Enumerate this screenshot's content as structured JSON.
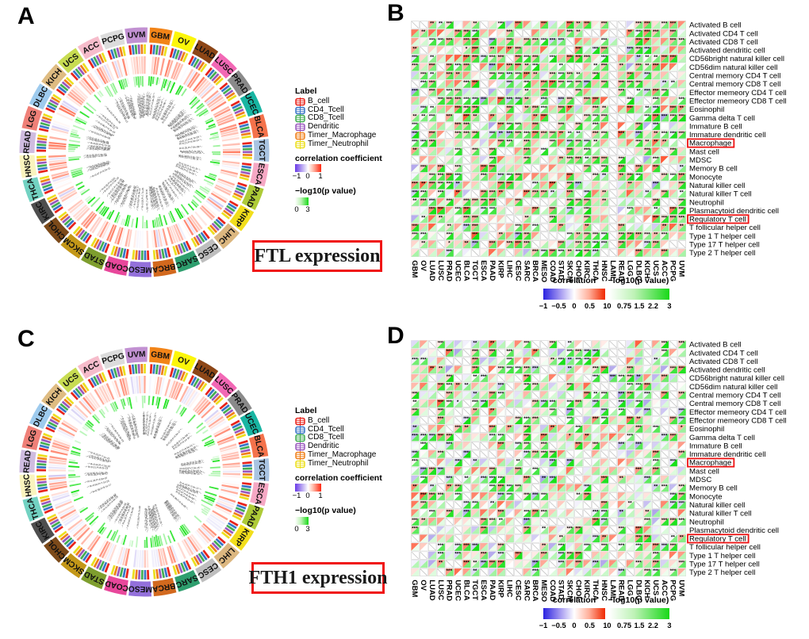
{
  "figure": {
    "panel_a_letter": "A",
    "panel_b_letter": "B",
    "panel_c_letter": "C",
    "panel_d_letter": "D",
    "panel_a_title": "FTL expression",
    "panel_c_title": "FTH1 expression"
  },
  "circos_legend": {
    "label_title": "Label",
    "items": [
      {
        "label": "B_cell",
        "color": "#e8231c"
      },
      {
        "label": "CD4_Tcell",
        "color": "#3a76c8"
      },
      {
        "label": "CD8_Tcell",
        "color": "#44ae54"
      },
      {
        "label": "Dendritic",
        "color": "#9a58be"
      },
      {
        "label": "Timer_Macrophage",
        "color": "#f0801a"
      },
      {
        "label": "Timer_Neutrophil",
        "color": "#ecdf1e"
      }
    ],
    "corr_title": "correlation coefficient",
    "corr_ticks": [
      "−1",
      "0",
      "1"
    ],
    "p_title": "−log10(p value)",
    "p_ticks": [
      "0",
      "3"
    ]
  },
  "circos": {
    "stat_label_format": "R={r},P={p}",
    "cancers": [
      {
        "name": "GBM",
        "color": "#f28418"
      },
      {
        "name": "OV",
        "color": "#fcf60a"
      },
      {
        "name": "LUAD",
        "color": "#8c4617"
      },
      {
        "name": "LUSC",
        "color": "#f268b5"
      },
      {
        "name": "PRAD",
        "color": "#8a8a8a"
      },
      {
        "name": "UCEC",
        "color": "#18b5a2"
      },
      {
        "name": "BLCA",
        "color": "#f4724b"
      },
      {
        "name": "TGCT",
        "color": "#a9c4e2"
      },
      {
        "name": "ESCA",
        "color": "#f6a8c4"
      },
      {
        "name": "PAAD",
        "color": "#aecb38"
      },
      {
        "name": "KIRP",
        "color": "#f2de1c"
      },
      {
        "name": "LIHC",
        "color": "#dcb780"
      },
      {
        "name": "CESC",
        "color": "#bebebe"
      },
      {
        "name": "SARC",
        "color": "#2e9e6e"
      },
      {
        "name": "BRCA",
        "color": "#d2691e"
      },
      {
        "name": "MESO",
        "color": "#9370db"
      },
      {
        "name": "COAD",
        "color": "#e8479b"
      },
      {
        "name": "STAD",
        "color": "#7e9e2e"
      },
      {
        "name": "SKCM",
        "color": "#c39718"
      },
      {
        "name": "CHOL",
        "color": "#7c4a1a"
      },
      {
        "name": "KIRC",
        "color": "#4e4e4e"
      },
      {
        "name": "THCA",
        "color": "#72d2c2"
      },
      {
        "name": "HNSC",
        "color": "#faf4be"
      },
      {
        "name": "READ",
        "color": "#cfbce0"
      },
      {
        "name": "LGG",
        "color": "#ef8078"
      },
      {
        "name": "DLBC",
        "color": "#9ecbee"
      },
      {
        "name": "KICH",
        "color": "#dfbc82"
      },
      {
        "name": "UCS",
        "color": "#c8dc52"
      },
      {
        "name": "ACC",
        "color": "#f6bccb"
      },
      {
        "name": "PCPG",
        "color": "#dcdcdc"
      },
      {
        "name": "UVM",
        "color": "#c291d2"
      }
    ]
  },
  "heatmap": {
    "columns": [
      "GBM",
      "OV",
      "LUAD",
      "LUSC",
      "PRAD",
      "UCEC",
      "BLCA",
      "TGCT",
      "ESCA",
      "PAAD",
      "KIRP",
      "LIHC",
      "CESC",
      "SARC",
      "BRCA",
      "MESO",
      "COAD",
      "STAD",
      "SKCM",
      "CHOL",
      "KIRC",
      "THCA",
      "HNSC",
      "LAML",
      "READ",
      "LGG",
      "DLBC",
      "KICH",
      "UCS",
      "ACC",
      "PCPG",
      "UVM"
    ],
    "rows": [
      "Activated B cell",
      "Activated CD4 T cell",
      "Activated CD8 T cell",
      "Activated dendritic cell",
      "CD56bright natural killer cell",
      "CD56dim natural killer cell",
      "Central memory CD4 T cell",
      "Central memory CD8 T cell",
      "Effector memeory CD4 T cell",
      "Effector memeory CD8 T cell",
      "Eosinophil",
      "Gamma delta T cell",
      "Immature  B cell",
      "Immature dendritic cell",
      "Macrophage",
      "Mast cell",
      "MDSC",
      "Memory B cell",
      "Monocyte",
      "Natural killer cell",
      "Natural killer T cell",
      "Neutrophil",
      "Plasmacytoid dendritic cell",
      "Regulatory T cell",
      "T follicular helper cell",
      "Type 1 T helper cell",
      "Type 17 T helper cell",
      "Type 2 T helper cell"
    ],
    "boxed_rows": [
      "Macrophage",
      "Regulatory T cell"
    ],
    "legend": {
      "corr_title": "correlation",
      "corr_ticks": [
        "−1",
        "−0.5",
        "0",
        "0.5",
        "1"
      ],
      "p_title": "−log10(p value)",
      "p_ticks": [
        "0",
        "0.75",
        "1.5",
        "2.2",
        "3"
      ]
    }
  },
  "chart_data": [
    {
      "panel": "A",
      "type": "heatmap",
      "subtype": "circular-circos",
      "title": "FTL expression",
      "categories": [
        "GBM",
        "OV",
        "LUAD",
        "LUSC",
        "PRAD",
        "UCEC",
        "BLCA",
        "TGCT",
        "ESCA",
        "PAAD",
        "KIRP",
        "LIHC",
        "CESC",
        "SARC",
        "BRCA",
        "MESO",
        "COAD",
        "STAD",
        "SKCM",
        "CHOL",
        "KIRC",
        "THCA",
        "HNSC",
        "READ",
        "LGG",
        "DLBC",
        "KICH",
        "UCS",
        "ACC",
        "PCPG",
        "UVM"
      ],
      "series": [
        "B_cell",
        "CD4_Tcell",
        "CD8_Tcell",
        "Dendritic",
        "Timer_Macrophage",
        "Timer_Neutrophil"
      ],
      "rings": [
        "cancer-type label",
        "immune-cell color ticks",
        "correlation coefficient bars",
        "−log10(p value) bars",
        "R/P statistic labels"
      ],
      "corr_range": [
        -1,
        1
      ],
      "p_range": [
        0,
        3
      ],
      "values_estimated": true
    },
    {
      "panel": "B",
      "type": "heatmap",
      "subtype": "split-triangle",
      "title": "",
      "x": [
        "GBM",
        "OV",
        "LUAD",
        "LUSC",
        "PRAD",
        "UCEC",
        "BLCA",
        "TGCT",
        "ESCA",
        "PAAD",
        "KIRP",
        "LIHC",
        "CESC",
        "SARC",
        "BRCA",
        "MESO",
        "COAD",
        "STAD",
        "SKCM",
        "CHOL",
        "KIRC",
        "THCA",
        "HNSC",
        "LAML",
        "READ",
        "LGG",
        "DLBC",
        "KICH",
        "UCS",
        "ACC",
        "PCPG",
        "UVM"
      ],
      "y": [
        "Activated B cell",
        "Activated CD4 T cell",
        "Activated CD8 T cell",
        "Activated dendritic cell",
        "CD56bright natural killer cell",
        "CD56dim natural killer cell",
        "Central memory CD4 T cell",
        "Central memory CD8 T cell",
        "Effector memeory CD4 T cell",
        "Effector memeory CD8 T cell",
        "Eosinophil",
        "Gamma delta T cell",
        "Immature  B cell",
        "Immature dendritic cell",
        "Macrophage",
        "Mast cell",
        "MDSC",
        "Memory B cell",
        "Monocyte",
        "Natural killer cell",
        "Natural killer T cell",
        "Neutrophil",
        "Plasmacytoid dendritic cell",
        "Regulatory T cell",
        "T follicular helper cell",
        "Type 1 T helper cell",
        "Type 17 T helper cell",
        "Type 2 T helper cell"
      ],
      "cell_encoding": {
        "upper_left_triangle": "correlation −1..1 (blue-white-red)",
        "lower_right_triangle": "−log10(p value) 0..3 (white-green)",
        "empty_cell": "gray diagonal slash",
        "stars": "significance asterisks"
      },
      "highlighted_rows": [
        "Macrophage",
        "Regulatory T cell"
      ],
      "values_estimated": true
    },
    {
      "panel": "C",
      "type": "heatmap",
      "subtype": "circular-circos",
      "title": "FTH1 expression",
      "categories": [
        "GBM",
        "OV",
        "LUAD",
        "LUSC",
        "PRAD",
        "UCEC",
        "BLCA",
        "TGCT",
        "ESCA",
        "PAAD",
        "KIRP",
        "LIHC",
        "CESC",
        "SARC",
        "BRCA",
        "MESO",
        "COAD",
        "STAD",
        "SKCM",
        "CHOL",
        "KIRC",
        "THCA",
        "HNSC",
        "READ",
        "LGG",
        "DLBC",
        "KICH",
        "UCS",
        "ACC",
        "PCPG",
        "UVM"
      ],
      "series": [
        "B_cell",
        "CD4_Tcell",
        "CD8_Tcell",
        "Dendritic",
        "Timer_Macrophage",
        "Timer_Neutrophil"
      ],
      "rings": [
        "cancer-type label",
        "immune-cell color ticks",
        "correlation coefficient bars",
        "−log10(p value) bars",
        "R/P statistic labels"
      ],
      "corr_range": [
        -1,
        1
      ],
      "p_range": [
        0,
        3
      ],
      "values_estimated": true
    },
    {
      "panel": "D",
      "type": "heatmap",
      "subtype": "split-triangle",
      "title": "",
      "x": [
        "GBM",
        "OV",
        "LUAD",
        "LUSC",
        "PRAD",
        "UCEC",
        "BLCA",
        "TGCT",
        "ESCA",
        "PAAD",
        "KIRP",
        "LIHC",
        "CESC",
        "SARC",
        "BRCA",
        "MESO",
        "COAD",
        "STAD",
        "SKCM",
        "CHOL",
        "KIRC",
        "THCA",
        "HNSC",
        "LAML",
        "READ",
        "LGG",
        "DLBC",
        "KICH",
        "UCS",
        "ACC",
        "PCPG",
        "UVM"
      ],
      "y_same_as_panel": "B",
      "cell_encoding": {
        "upper_left_triangle": "correlation −1..1 (blue-white-red)",
        "lower_right_triangle": "−log10(p value) 0..3 (white-green)",
        "empty_cell": "gray diagonal slash",
        "stars": "significance asterisks"
      },
      "highlighted_rows": [
        "Macrophage",
        "Regulatory T cell"
      ],
      "values_estimated": true
    }
  ],
  "render": {
    "seed_a": 101,
    "seed_b": 7,
    "seed_c": 202,
    "seed_d": 13,
    "bias_a": 0.38,
    "bias_c": 0.28,
    "sig_a": 0.55,
    "sig_c": 0.48,
    "empty_b": 0.13,
    "empty_d": 0.2,
    "bias_b": 0.3,
    "bias_d": 0.18,
    "sig_b": 0.68,
    "sig_d": 0.52
  }
}
